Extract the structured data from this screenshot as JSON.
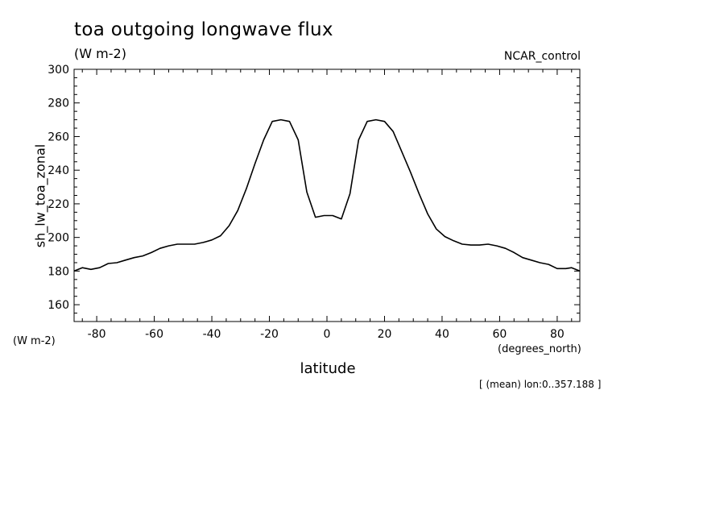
{
  "chart_data": {
    "type": "line",
    "title": "toa outgoing longwave flux",
    "units": "(W m-2)",
    "dataset": "NCAR_control",
    "ylabel": "sh_lw_toa_zonal",
    "ylabel_units": "(W m-2)",
    "xlabel": "latitude",
    "xlabel_units": "(degrees_north)",
    "footnote": "[ (mean) lon:0..357.188 ]",
    "xlim": [
      -87.86,
      87.86
    ],
    "ylim": [
      150,
      300
    ],
    "xticks": [
      -80,
      -60,
      -40,
      -20,
      0,
      20,
      40,
      60,
      80
    ],
    "yticks": [
      160,
      180,
      200,
      220,
      240,
      260,
      280,
      300
    ],
    "grid": false,
    "series": [
      {
        "x": [
          -87.9,
          -85,
          -82,
          -79,
          -76,
          -73,
          -70,
          -67,
          -64,
          -61,
          -58,
          -55,
          -52,
          -49,
          -46,
          -43,
          -40,
          -37,
          -34,
          -31,
          -28,
          -25,
          -22,
          -19,
          -16,
          -13,
          -10,
          -7,
          -4,
          -1,
          2,
          5,
          8,
          11,
          14,
          17,
          20,
          23,
          26,
          29,
          32,
          35,
          38,
          41,
          44,
          47,
          50,
          53,
          56,
          59,
          62,
          65,
          68,
          71,
          74,
          77,
          80,
          83,
          85,
          87.9
        ],
        "y": [
          180,
          182,
          181,
          182,
          184.5,
          185,
          186.5,
          188,
          189,
          191,
          193.5,
          195,
          196,
          196,
          196,
          197,
          198.5,
          201,
          207,
          216,
          229,
          244,
          258,
          269,
          270,
          269,
          258,
          227,
          212,
          213,
          213,
          211,
          226,
          258,
          269,
          270,
          269,
          263,
          251,
          239,
          226,
          214,
          205,
          200.5,
          198,
          196,
          195.5,
          195.5,
          196,
          195,
          193.5,
          191,
          188,
          186.5,
          185,
          184,
          181.5,
          181.5,
          182,
          180
        ]
      }
    ]
  }
}
